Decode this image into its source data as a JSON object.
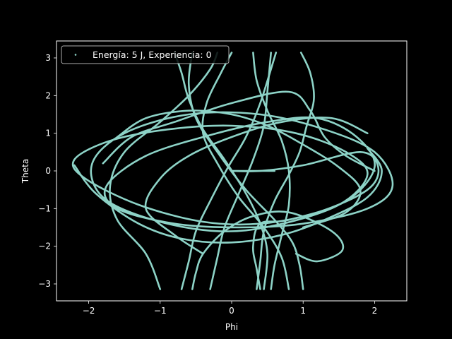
{
  "chart_data": {
    "type": "scatter",
    "title": "",
    "xlabel": "Phi",
    "ylabel": "Theta",
    "xlim": [
      -2.45,
      2.45
    ],
    "ylim": [
      -3.45,
      3.45
    ],
    "xticks": [
      -2,
      -1,
      0,
      1,
      2
    ],
    "yticks": [
      -3,
      -2,
      -1,
      0,
      1,
      2,
      3
    ],
    "xtick_labels": [
      "−2",
      "−1",
      "0",
      "1",
      "2"
    ],
    "ytick_labels": [
      "−3",
      "−2",
      "−1",
      "0",
      "1",
      "2",
      "3"
    ],
    "grid": false,
    "legend_position": "upper-left",
    "series": [
      {
        "name": "Energía: 5 J, Experiencia: 0",
        "color": "#8dd3c7",
        "marker": "point",
        "description_points": [
          [
            0.0,
            0.0
          ],
          [
            0.4,
            0.0
          ],
          [
            1.0,
            0.15
          ],
          [
            1.8,
            0.5
          ],
          [
            2.05,
            0.1
          ],
          [
            1.9,
            -0.5
          ],
          [
            1.2,
            -1.1
          ],
          [
            0.4,
            -1.4
          ],
          [
            -0.4,
            -1.35
          ],
          [
            -1.3,
            -0.9
          ],
          [
            -2.05,
            -0.2
          ],
          [
            -2.2,
            0.3
          ],
          [
            -1.7,
            0.8
          ],
          [
            -0.9,
            1.1
          ],
          [
            0.0,
            1.2
          ],
          [
            0.9,
            1.0
          ],
          [
            1.6,
            0.5
          ],
          [
            1.9,
            -0.1
          ],
          [
            1.5,
            -0.9
          ],
          [
            0.6,
            -1.45
          ],
          [
            -0.2,
            -1.6
          ],
          [
            -1.1,
            -1.3
          ],
          [
            -1.8,
            -0.7
          ],
          [
            -1.95,
            0.2
          ],
          [
            -1.5,
            1.0
          ],
          [
            -0.6,
            1.5
          ],
          [
            0.4,
            1.5
          ],
          [
            1.3,
            1.1
          ],
          [
            2.0,
            0.5
          ],
          [
            2.25,
            -0.4
          ],
          [
            1.9,
            -1.0
          ],
          [
            1.0,
            -1.4
          ],
          [
            0.1,
            -1.5
          ],
          [
            -0.8,
            -1.4
          ],
          [
            -1.6,
            -1.0
          ],
          [
            -1.75,
            -0.4
          ],
          [
            -1.2,
            0.4
          ],
          [
            -0.3,
            0.95
          ],
          [
            0.5,
            1.3
          ],
          [
            1.2,
            1.4
          ],
          [
            1.75,
            0.9
          ],
          [
            2.0,
            0.1
          ],
          [
            1.6,
            -0.8
          ],
          [
            0.8,
            -1.3
          ],
          [
            0.4,
            -1.4
          ],
          [
            0.3,
            -2.0
          ],
          [
            0.35,
            -2.6
          ],
          [
            0.4,
            -3.14
          ]
        ],
        "segments": [
          [
            [
              0.35,
              -3.14
            ],
            [
              0.4,
              -2.4
            ],
            [
              0.45,
              -1.6
            ],
            [
              0.6,
              -0.8
            ],
            [
              0.8,
              -0.1
            ],
            [
              0.95,
              0.5
            ],
            [
              1.05,
              1.2
            ],
            [
              1.15,
              1.9
            ],
            [
              1.1,
              2.6
            ],
            [
              0.97,
              3.14
            ]
          ],
          [
            [
              0.45,
              -3.14
            ],
            [
              0.5,
              -2.2
            ],
            [
              0.4,
              -1.4
            ],
            [
              0.2,
              -0.6
            ],
            [
              -0.1,
              0.3
            ],
            [
              -0.4,
              1.1
            ],
            [
              -0.6,
              1.9
            ],
            [
              -0.7,
              2.6
            ],
            [
              -0.8,
              3.14
            ]
          ],
          [
            [
              0.55,
              -3.14
            ],
            [
              0.6,
              -2.5
            ],
            [
              0.7,
              -1.7
            ],
            [
              0.8,
              -0.9
            ],
            [
              0.8,
              0.0
            ],
            [
              0.7,
              0.8
            ],
            [
              0.5,
              1.6
            ],
            [
              0.35,
              2.4
            ],
            [
              0.3,
              3.14
            ]
          ],
          [
            [
              -0.3,
              -3.14
            ],
            [
              -0.2,
              -2.3
            ],
            [
              -0.1,
              -1.5
            ],
            [
              0.1,
              -0.6
            ],
            [
              0.3,
              0.3
            ],
            [
              0.45,
              1.2
            ],
            [
              0.5,
              2.1
            ],
            [
              0.55,
              3.14
            ]
          ],
          [
            [
              -0.7,
              -3.14
            ],
            [
              -0.6,
              -2.4
            ],
            [
              -0.5,
              -1.6
            ],
            [
              -0.3,
              -0.8
            ],
            [
              -0.05,
              0.1
            ],
            [
              0.2,
              0.9
            ],
            [
              0.4,
              1.8
            ],
            [
              0.62,
              3.14
            ]
          ],
          [
            [
              -1.0,
              -3.14
            ],
            [
              -1.2,
              -2.2
            ],
            [
              -1.6,
              -1.3
            ],
            [
              -1.7,
              -0.4
            ],
            [
              -1.5,
              0.5
            ],
            [
              -1.0,
              1.3
            ],
            [
              -0.6,
              2.0
            ],
            [
              -0.3,
              2.7
            ],
            [
              -0.2,
              3.14
            ]
          ],
          [
            [
              0.8,
              -3.14
            ],
            [
              0.7,
              -2.3
            ],
            [
              0.45,
              -1.5
            ],
            [
              0.1,
              -0.7
            ],
            [
              -0.2,
              0.2
            ],
            [
              -0.4,
              1.0
            ],
            [
              -0.35,
              1.8
            ],
            [
              -0.15,
              2.6
            ],
            [
              0.0,
              3.14
            ]
          ],
          [
            [
              1.0,
              -3.14
            ],
            [
              0.95,
              -2.5
            ],
            [
              0.85,
              -1.9
            ],
            [
              0.6,
              -1.3
            ],
            [
              0.2,
              -0.5
            ],
            [
              -0.2,
              0.5
            ],
            [
              -0.5,
              1.4
            ],
            [
              -0.6,
              2.3
            ],
            [
              -0.55,
              3.14
            ]
          ],
          [
            [
              -0.55,
              -3.14
            ],
            [
              -0.5,
              -2.7
            ],
            [
              -0.4,
              -2.2
            ],
            [
              -0.1,
              -1.6
            ],
            [
              0.3,
              -1.2
            ],
            [
              0.8,
              -1.1
            ],
            [
              1.4,
              -1.6
            ],
            [
              1.55,
              -2.1
            ],
            [
              1.2,
              -2.4
            ],
            [
              0.9,
              -2.2
            ]
          ],
          [
            [
              -1.8,
              0.2
            ],
            [
              -1.4,
              0.9
            ],
            [
              -0.8,
              1.3
            ],
            [
              0.0,
              1.8
            ],
            [
              0.8,
              2.1
            ],
            [
              1.1,
              1.6
            ],
            [
              1.3,
              0.9
            ],
            [
              1.6,
              0.4
            ],
            [
              2.0,
              0.0
            ]
          ],
          [
            [
              -2.2,
              0.15
            ],
            [
              -1.9,
              -0.6
            ],
            [
              -1.3,
              -1.4
            ],
            [
              -0.7,
              -1.8
            ],
            [
              0.0,
              -1.9
            ],
            [
              0.7,
              -1.7
            ],
            [
              1.3,
              -1.3
            ],
            [
              1.9,
              -0.7
            ],
            [
              2.1,
              0.0
            ],
            [
              1.9,
              0.6
            ]
          ],
          [
            [
              -0.4,
              -2.2
            ],
            [
              -0.8,
              -1.7
            ],
            [
              -1.2,
              -1.0
            ],
            [
              -1.0,
              -0.2
            ],
            [
              -0.6,
              0.4
            ],
            [
              0.0,
              0.9
            ],
            [
              0.7,
              1.3
            ],
            [
              1.4,
              1.4
            ],
            [
              1.9,
              1.0
            ]
          ],
          [
            [
              0.0,
              0.0
            ],
            [
              0.6,
              0.0
            ]
          ],
          [
            [
              -1.6,
              0.9
            ],
            [
              -1.2,
              1.4
            ],
            [
              -0.6,
              1.6
            ],
            [
              0.0,
              1.5
            ],
            [
              0.5,
              1.2
            ],
            [
              1.0,
              0.7
            ],
            [
              1.5,
              0.1
            ],
            [
              1.8,
              -0.5
            ],
            [
              1.6,
              -1.1
            ],
            [
              1.0,
              -1.5
            ]
          ]
        ]
      }
    ]
  }
}
